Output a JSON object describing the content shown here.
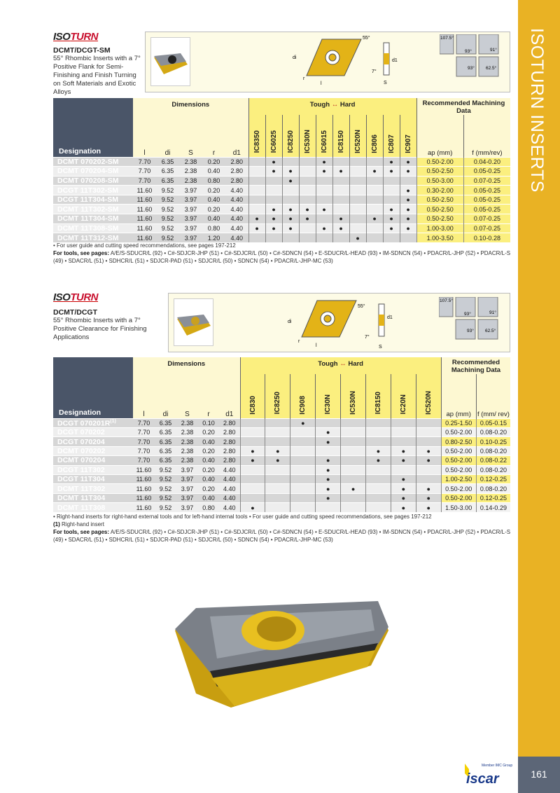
{
  "side_title": "ISOTURN INSERTS",
  "page_number": "161",
  "brand": {
    "logo": "ISOTURN",
    "company_logo": "iscar",
    "member": "Member IMC Group"
  },
  "section1": {
    "title": "DCMT/DCGT-SM",
    "description": "55° Rhombic Inserts with a 7° Positive Flank for Semi-Finishing and Finish Turning on Soft Materials and Exotic Alloys",
    "diagram": {
      "angle": "55°",
      "flank": "7°",
      "labels": [
        "di",
        "l",
        "r",
        "d1",
        "S"
      ]
    },
    "approach_angles": [
      "107.5°",
      "93°",
      "91°",
      "93°",
      "62.5°"
    ],
    "headers": {
      "designation": "Designation",
      "dimensions": "Dimensions",
      "dims": [
        "l",
        "di",
        "S",
        "r",
        "d1"
      ],
      "grade_scale": "Tough ↔ Hard",
      "tough": "Tough",
      "hard": "Hard",
      "machining": "Recommended Machining Data",
      "ap": "ap (mm)",
      "f": "f (mm/rev)"
    },
    "grades": [
      "IC8350",
      "IC6025",
      "IC8250",
      "IC530N",
      "IC6015",
      "IC8150",
      "IC520N",
      "IC806",
      "IC807",
      "IC907"
    ],
    "rows": [
      {
        "d": "DCMT 070202-SM",
        "v": [
          "7.70",
          "6.35",
          "2.38",
          "0.20",
          "2.80"
        ],
        "g": [
          0,
          1,
          0,
          0,
          1,
          0,
          0,
          0,
          1,
          1
        ],
        "ap": "0.50-2.00",
        "f": "0.04-0.20"
      },
      {
        "d": "DCMT 070204-SM",
        "v": [
          "7.70",
          "6.35",
          "2.38",
          "0.40",
          "2.80"
        ],
        "g": [
          0,
          1,
          1,
          0,
          1,
          1,
          0,
          1,
          1,
          1
        ],
        "ap": "0.50-2.50",
        "f": "0.05-0.25"
      },
      {
        "d": "DCMT 070208-SM",
        "v": [
          "7.70",
          "6.35",
          "2.38",
          "0.80",
          "2.80"
        ],
        "g": [
          0,
          0,
          1,
          0,
          0,
          0,
          0,
          0,
          0,
          0
        ],
        "ap": "0.50-3.00",
        "f": "0.07-0.25"
      },
      {
        "d": "DCGT 11T302-SM",
        "v": [
          "11.60",
          "9.52",
          "3.97",
          "0.20",
          "4.40"
        ],
        "g": [
          0,
          0,
          0,
          0,
          0,
          0,
          0,
          0,
          0,
          1
        ],
        "ap": "0.30-2.00",
        "f": "0.05-0.25"
      },
      {
        "d": "DCGT 11T304-SM",
        "v": [
          "11.60",
          "9.52",
          "3.97",
          "0.40",
          "4.40"
        ],
        "g": [
          0,
          0,
          0,
          0,
          0,
          0,
          0,
          0,
          0,
          1
        ],
        "ap": "0.50-2.50",
        "f": "0.05-0.25"
      },
      {
        "d": "DCMT 11T302-SM",
        "v": [
          "11.60",
          "9.52",
          "3.97",
          "0.20",
          "4.40"
        ],
        "g": [
          0,
          1,
          1,
          1,
          1,
          0,
          0,
          0,
          1,
          1
        ],
        "ap": "0.50-2.50",
        "f": "0.05-0.25"
      },
      {
        "d": "DCMT 11T304-SM",
        "v": [
          "11.60",
          "9.52",
          "3.97",
          "0.40",
          "4.40"
        ],
        "g": [
          1,
          1,
          1,
          1,
          0,
          1,
          0,
          1,
          1,
          1
        ],
        "ap": "0.50-2.50",
        "f": "0.07-0.25"
      },
      {
        "d": "DCMT 11T308-SM",
        "v": [
          "11.60",
          "9.52",
          "3.97",
          "0.80",
          "4.40"
        ],
        "g": [
          1,
          1,
          1,
          0,
          1,
          1,
          0,
          0,
          1,
          1
        ],
        "ap": "1.00-3.00",
        "f": "0.07-0.25"
      },
      {
        "d": "DCMT 11T312-SM",
        "v": [
          "11.60",
          "9.52",
          "3.97",
          "1.20",
          "4.40"
        ],
        "g": [
          0,
          0,
          0,
          0,
          0,
          0,
          1,
          0,
          0,
          0
        ],
        "ap": "1.00-3.50",
        "f": "0.10-0.28"
      }
    ],
    "notes": [
      "• For user guide and cutting speed recommendations, see pages 197-212"
    ],
    "tools_label": "For tools, see pages:",
    "tools": "A/E/S-SDUCR/L (92) • C#-SDJCR-JHP (51) • C#-SDJCR/L (50) • C#-SDNCN (54) • E-SDUCR/L-HEAD (93) • IM-SDNCN (54) • PDACR/L-JHP (52) • PDACR/L-S (49) • SDACR/L (51) • SDHCR/L (51) • SDJCR-PAD (51) • SDJCR/L (50) • SDNCN (54) • PDACR/L-JHP-MC (53)"
  },
  "section2": {
    "title": "DCMT/DCGT",
    "description": "55° Rhombic Inserts with a 7° Positive Clearance for Finishing Applications",
    "diagram": {
      "angle": "55°",
      "flank": "7°",
      "labels": [
        "di",
        "l",
        "r",
        "d1",
        "S"
      ]
    },
    "approach_angles": [
      "107.5°",
      "93°",
      "91°",
      "93°",
      "62.5°"
    ],
    "headers": {
      "designation": "Designation",
      "dimensions": "Dimensions",
      "dims": [
        "l",
        "di",
        "S",
        "r",
        "d1"
      ],
      "tough": "Tough",
      "hard": "Hard",
      "machining": "Recommended Machining Data",
      "ap": "ap (mm)",
      "f": "f (mm/ rev)"
    },
    "grades": [
      "IC830",
      "IC8250",
      "IC908",
      "IC30N",
      "IC530N",
      "IC8150",
      "IC20N",
      "IC520N"
    ],
    "rows": [
      {
        "d": "DCGT 070201R",
        "sup": "(1)",
        "v": [
          "7.70",
          "6.35",
          "2.38",
          "0.10",
          "2.80"
        ],
        "g": [
          0,
          0,
          1,
          0,
          0,
          0,
          0,
          0
        ],
        "ap": "0.25-1.50",
        "f": "0.05-0.15"
      },
      {
        "d": "DCGT 070202",
        "v": [
          "7.70",
          "6.35",
          "2.38",
          "0.20",
          "2.80"
        ],
        "g": [
          0,
          0,
          0,
          1,
          0,
          0,
          0,
          0
        ],
        "ap": "0.50-2.00",
        "f": "0.08-0.20"
      },
      {
        "d": "DCGT 070204",
        "v": [
          "7.70",
          "6.35",
          "2.38",
          "0.40",
          "2.80"
        ],
        "g": [
          0,
          0,
          0,
          1,
          0,
          0,
          0,
          0
        ],
        "ap": "0.80-2.50",
        "f": "0.10-0.25"
      },
      {
        "d": "DCMT 070202",
        "v": [
          "7.70",
          "6.35",
          "2.38",
          "0.20",
          "2.80"
        ],
        "g": [
          1,
          1,
          0,
          0,
          0,
          1,
          1,
          1
        ],
        "ap": "0.50-2.00",
        "f": "0.08-0.20"
      },
      {
        "d": "DCMT 070204",
        "v": [
          "7.70",
          "6.35",
          "2.38",
          "0.40",
          "2.80"
        ],
        "g": [
          1,
          1,
          0,
          1,
          0,
          1,
          1,
          1
        ],
        "ap": "0.50-2.00",
        "f": "0.08-0.22"
      },
      {
        "d": "DCGT 11T302",
        "v": [
          "11.60",
          "9.52",
          "3.97",
          "0.20",
          "4.40"
        ],
        "g": [
          0,
          0,
          0,
          1,
          0,
          0,
          0,
          0
        ],
        "ap": "0.50-2.00",
        "f": "0.08-0.20"
      },
      {
        "d": "DCGT 11T304",
        "v": [
          "11.60",
          "9.52",
          "3.97",
          "0.40",
          "4.40"
        ],
        "g": [
          0,
          0,
          0,
          1,
          0,
          0,
          1,
          0
        ],
        "ap": "1.00-2.50",
        "f": "0.12-0.25"
      },
      {
        "d": "DCMT 11T302",
        "v": [
          "11.60",
          "9.52",
          "3.97",
          "0.20",
          "4.40"
        ],
        "g": [
          0,
          0,
          0,
          1,
          1,
          0,
          1,
          1
        ],
        "ap": "0.50-2.00",
        "f": "0.08-0.20"
      },
      {
        "d": "DCMT 11T304",
        "v": [
          "11.60",
          "9.52",
          "3.97",
          "0.40",
          "4.40"
        ],
        "g": [
          0,
          0,
          0,
          1,
          0,
          0,
          1,
          1
        ],
        "ap": "0.50-2.00",
        "f": "0.12-0.25"
      },
      {
        "d": "DCMT 11T308",
        "v": [
          "11.60",
          "9.52",
          "3.97",
          "0.80",
          "4.40"
        ],
        "g": [
          1,
          0,
          0,
          0,
          0,
          0,
          1,
          1
        ],
        "ap": "1.50-3.00",
        "f": "0.14-0.29"
      }
    ],
    "notes": [
      "• Right-hand inserts for right-hand external tools and for left-hand internal tools  •  For user guide and cutting speed recommendations, see pages 197-212"
    ],
    "footnote_mark": "(1)",
    "footnote": "Right-hand insert",
    "tools_label": "For tools, see pages:",
    "tools": "A/E/S-SDUCR/L (92) • C#-SDJCR-JHP (51) • C#-SDJCR/L (50) • C#-SDNCN (54) • E-SDUCR/L-HEAD (93) • IM-SDNCN (54) • PDACR/L-JHP (52) • PDACR/L-S (49) • SDACR/L (51) • SDHCR/L (51) • SDJCR-PAD (51) • SDJCR/L (50) • SDNCN (54) • PDACR/L-JHP-MC (53)"
  },
  "colors": {
    "gold": "#e9b224",
    "slate": "#4a5568",
    "yellow": "#fbef7f",
    "cream": "#fdf8d2"
  }
}
